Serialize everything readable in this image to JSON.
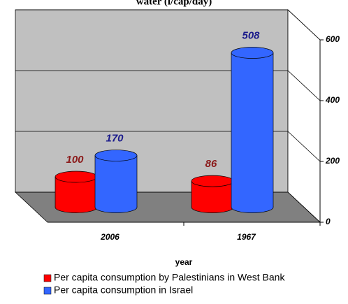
{
  "chart_data": {
    "type": "bar3d",
    "title": "water (l/cap/day)",
    "xlabel": "year",
    "categories": [
      "2006",
      "1967"
    ],
    "series": [
      {
        "name": "Per capita consumption by Palestinians in West Bank",
        "color": "#ff0000",
        "label_color": "#8b1a1a",
        "values": [
          100,
          86
        ]
      },
      {
        "name": "Per capita consumption in Israel",
        "color": "#3366ff",
        "label_color": "#1a1a8b",
        "values": [
          170,
          508
        ]
      }
    ],
    "ylim": [
      0,
      600
    ],
    "yticks": [
      0,
      200,
      400,
      600
    ],
    "grid": true
  }
}
